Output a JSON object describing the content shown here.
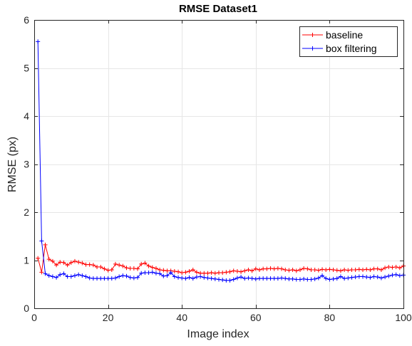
{
  "chart_data": {
    "type": "line",
    "title": "RMSE Dataset1",
    "xlabel": "Image index",
    "ylabel": "RMSE (px)",
    "xlim": [
      0,
      100
    ],
    "ylim": [
      0,
      6
    ],
    "xticks": [
      0,
      20,
      40,
      60,
      80,
      100
    ],
    "yticks": [
      0,
      1,
      2,
      3,
      4,
      5,
      6
    ],
    "grid": true,
    "legend_position": "top-right",
    "series": [
      {
        "name": "baseline",
        "color": "#ff0000",
        "marker": "plus",
        "x": [
          1,
          2,
          3,
          4,
          5,
          6,
          7,
          8,
          9,
          10,
          11,
          12,
          13,
          14,
          15,
          16,
          17,
          18,
          19,
          20,
          21,
          22,
          23,
          24,
          25,
          26,
          27,
          28,
          29,
          30,
          31,
          32,
          33,
          34,
          35,
          36,
          37,
          38,
          39,
          40,
          41,
          42,
          43,
          44,
          45,
          46,
          47,
          48,
          49,
          50,
          51,
          52,
          53,
          54,
          55,
          56,
          57,
          58,
          59,
          60,
          61,
          62,
          63,
          64,
          65,
          66,
          67,
          68,
          69,
          70,
          71,
          72,
          73,
          74,
          75,
          76,
          77,
          78,
          79,
          80,
          81,
          82,
          83,
          84,
          85,
          86,
          87,
          88,
          89,
          90,
          91,
          92,
          93,
          94,
          95,
          96,
          97,
          98,
          99,
          100
        ],
        "values": [
          1.04,
          0.75,
          1.32,
          1.02,
          0.98,
          0.9,
          0.96,
          0.95,
          0.9,
          0.95,
          0.98,
          0.96,
          0.94,
          0.91,
          0.91,
          0.9,
          0.86,
          0.86,
          0.82,
          0.79,
          0.8,
          0.92,
          0.9,
          0.88,
          0.84,
          0.83,
          0.83,
          0.82,
          0.92,
          0.94,
          0.88,
          0.85,
          0.83,
          0.8,
          0.79,
          0.78,
          0.78,
          0.77,
          0.76,
          0.74,
          0.75,
          0.77,
          0.8,
          0.75,
          0.73,
          0.73,
          0.73,
          0.74,
          0.73,
          0.74,
          0.74,
          0.75,
          0.76,
          0.78,
          0.77,
          0.76,
          0.78,
          0.8,
          0.78,
          0.82,
          0.8,
          0.82,
          0.82,
          0.83,
          0.82,
          0.83,
          0.82,
          0.8,
          0.79,
          0.8,
          0.78,
          0.8,
          0.83,
          0.82,
          0.8,
          0.8,
          0.79,
          0.81,
          0.8,
          0.81,
          0.8,
          0.79,
          0.78,
          0.8,
          0.79,
          0.8,
          0.8,
          0.81,
          0.8,
          0.81,
          0.8,
          0.82,
          0.82,
          0.8,
          0.84,
          0.86,
          0.85,
          0.86,
          0.84,
          0.88
        ]
      },
      {
        "name": "box filtering",
        "color": "#0000ff",
        "marker": "plus",
        "x": [
          1,
          2,
          3,
          4,
          5,
          6,
          7,
          8,
          9,
          10,
          11,
          12,
          13,
          14,
          15,
          16,
          17,
          18,
          19,
          20,
          21,
          22,
          23,
          24,
          25,
          26,
          27,
          28,
          29,
          30,
          31,
          32,
          33,
          34,
          35,
          36,
          37,
          38,
          39,
          40,
          41,
          42,
          43,
          44,
          45,
          46,
          47,
          48,
          49,
          50,
          51,
          52,
          53,
          54,
          55,
          56,
          57,
          58,
          59,
          60,
          61,
          62,
          63,
          64,
          65,
          66,
          67,
          68,
          69,
          70,
          71,
          72,
          73,
          74,
          75,
          76,
          77,
          78,
          79,
          80,
          81,
          82,
          83,
          84,
          85,
          86,
          87,
          88,
          89,
          90,
          91,
          92,
          93,
          94,
          95,
          96,
          97,
          98,
          99,
          100
        ],
        "values": [
          5.55,
          1.4,
          0.72,
          0.68,
          0.66,
          0.64,
          0.7,
          0.72,
          0.66,
          0.66,
          0.68,
          0.7,
          0.68,
          0.66,
          0.63,
          0.62,
          0.62,
          0.62,
          0.62,
          0.62,
          0.62,
          0.63,
          0.66,
          0.68,
          0.67,
          0.64,
          0.63,
          0.64,
          0.73,
          0.74,
          0.74,
          0.75,
          0.73,
          0.72,
          0.67,
          0.68,
          0.74,
          0.66,
          0.64,
          0.63,
          0.62,
          0.64,
          0.62,
          0.65,
          0.66,
          0.64,
          0.63,
          0.62,
          0.61,
          0.6,
          0.59,
          0.58,
          0.58,
          0.6,
          0.63,
          0.65,
          0.62,
          0.63,
          0.62,
          0.61,
          0.62,
          0.62,
          0.62,
          0.62,
          0.62,
          0.62,
          0.63,
          0.62,
          0.61,
          0.61,
          0.6,
          0.6,
          0.61,
          0.6,
          0.6,
          0.61,
          0.63,
          0.68,
          0.62,
          0.6,
          0.61,
          0.62,
          0.66,
          0.62,
          0.63,
          0.64,
          0.65,
          0.66,
          0.66,
          0.65,
          0.64,
          0.66,
          0.65,
          0.63,
          0.65,
          0.67,
          0.69,
          0.7,
          0.68,
          0.69
        ]
      }
    ]
  }
}
